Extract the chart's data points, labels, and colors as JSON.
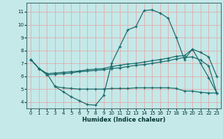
{
  "xlabel": "Humidex (Indice chaleur)",
  "xlim": [
    -0.5,
    23.5
  ],
  "ylim": [
    3.5,
    11.7
  ],
  "xticks": [
    0,
    1,
    2,
    3,
    4,
    5,
    6,
    7,
    8,
    9,
    10,
    11,
    12,
    13,
    14,
    15,
    16,
    17,
    18,
    19,
    20,
    21,
    22,
    23
  ],
  "yticks": [
    4,
    5,
    6,
    7,
    8,
    9,
    10,
    11
  ],
  "background_color": "#c5e8e8",
  "grid_color": "#e8a0a0",
  "line_color": "#1a6b6b",
  "figsize": [
    3.2,
    2.0
  ],
  "dpi": 100,
  "lines": [
    {
      "x": [
        0,
        1,
        2,
        3,
        4,
        5,
        6,
        7,
        8,
        9,
        10,
        11,
        12,
        13,
        14,
        15,
        16,
        17,
        18,
        19,
        20,
        21,
        22,
        23
      ],
      "y": [
        7.3,
        6.6,
        6.2,
        5.2,
        4.8,
        4.4,
        4.1,
        3.8,
        3.75,
        4.5,
        7.0,
        8.3,
        9.6,
        9.85,
        11.1,
        11.15,
        10.9,
        10.5,
        9.0,
        7.3,
        8.1,
        7.0,
        5.9,
        4.7
      ]
    },
    {
      "x": [
        0,
        1,
        2,
        3,
        4,
        5,
        6,
        7,
        8,
        9,
        10,
        11,
        12,
        13,
        14,
        15,
        16,
        17,
        18,
        19,
        20,
        21,
        22,
        23
      ],
      "y": [
        7.3,
        6.6,
        6.2,
        6.25,
        6.3,
        6.35,
        6.4,
        6.5,
        6.55,
        6.6,
        6.75,
        6.85,
        6.95,
        7.0,
        7.1,
        7.2,
        7.3,
        7.4,
        7.55,
        7.6,
        8.1,
        7.85,
        7.5,
        6.0
      ]
    },
    {
      "x": [
        0,
        1,
        2,
        3,
        4,
        5,
        6,
        7,
        8,
        9,
        10,
        11,
        12,
        13,
        14,
        15,
        16,
        17,
        18,
        19,
        20,
        21,
        22,
        23
      ],
      "y": [
        7.3,
        6.6,
        6.1,
        6.15,
        6.2,
        6.25,
        6.35,
        6.4,
        6.45,
        6.5,
        6.6,
        6.65,
        6.75,
        6.85,
        6.9,
        7.0,
        7.1,
        7.2,
        7.35,
        7.45,
        7.5,
        7.25,
        6.8,
        4.7
      ]
    },
    {
      "x": [
        3,
        4,
        5,
        6,
        7,
        8,
        9,
        10,
        11,
        12,
        13,
        14,
        15,
        16,
        17,
        18,
        19,
        20,
        21,
        22,
        23
      ],
      "y": [
        5.2,
        5.1,
        5.05,
        5.0,
        5.0,
        5.0,
        5.0,
        5.05,
        5.05,
        5.05,
        5.1,
        5.1,
        5.1,
        5.1,
        5.1,
        5.05,
        4.85,
        4.85,
        4.75,
        4.7,
        4.7
      ]
    }
  ]
}
